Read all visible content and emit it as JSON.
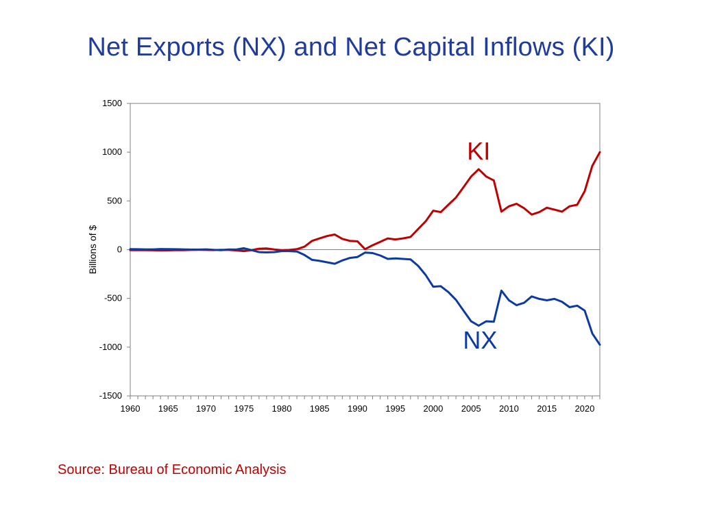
{
  "title": "Net Exports (NX) and Net Capital Inflows (KI)",
  "source": "Source:  Bureau of Economic Analysis",
  "chart_data": {
    "type": "line",
    "xlabel": "",
    "ylabel": "Billions of $",
    "xlim": [
      1960,
      2022
    ],
    "ylim": [
      -1500,
      1500
    ],
    "xticks": [
      1960,
      1965,
      1970,
      1975,
      1980,
      1985,
      1990,
      1995,
      2000,
      2005,
      2010,
      2015,
      2020
    ],
    "yticks": [
      1500,
      1000,
      500,
      0,
      -500,
      -1000,
      -1500
    ],
    "grid": false,
    "zero_line": true,
    "x": [
      1960,
      1961,
      1962,
      1963,
      1964,
      1965,
      1966,
      1967,
      1968,
      1969,
      1970,
      1971,
      1972,
      1973,
      1974,
      1975,
      1976,
      1977,
      1978,
      1979,
      1980,
      1981,
      1982,
      1983,
      1984,
      1985,
      1986,
      1987,
      1988,
      1989,
      1990,
      1991,
      1992,
      1993,
      1994,
      1995,
      1996,
      1997,
      1998,
      1999,
      2000,
      2001,
      2002,
      2003,
      2004,
      2005,
      2006,
      2007,
      2008,
      2009,
      2010,
      2011,
      2012,
      2013,
      2014,
      2015,
      2016,
      2017,
      2018,
      2019,
      2020,
      2021,
      2022
    ],
    "series": [
      {
        "name": "KI",
        "color": "#c00000",
        "values": [
          -5,
          -5,
          -5,
          -6,
          -8,
          -7,
          -5,
          -5,
          -3,
          -2,
          -3,
          -4,
          -2,
          -3,
          -8,
          -15,
          -5,
          10,
          12,
          2,
          -5,
          -3,
          5,
          30,
          90,
          115,
          140,
          155,
          110,
          90,
          85,
          5,
          45,
          80,
          115,
          105,
          115,
          130,
          210,
          290,
          400,
          385,
          460,
          535,
          640,
          750,
          825,
          750,
          710,
          390,
          445,
          470,
          425,
          360,
          385,
          430,
          410,
          390,
          445,
          460,
          600,
          860,
          1000
        ]
      },
      {
        "name": "NX",
        "color": "#0b3aa4",
        "values": [
          5,
          4,
          3,
          3,
          6,
          5,
          4,
          3,
          1,
          1,
          3,
          -2,
          -5,
          2,
          1,
          15,
          -5,
          -25,
          -28,
          -25,
          -15,
          -15,
          -20,
          -55,
          -105,
          -115,
          -130,
          -145,
          -110,
          -85,
          -75,
          -30,
          -35,
          -60,
          -95,
          -90,
          -95,
          -100,
          -165,
          -260,
          -380,
          -375,
          -435,
          -515,
          -625,
          -735,
          -780,
          -735,
          -740,
          -420,
          -520,
          -570,
          -545,
          -480,
          -505,
          -520,
          -505,
          -535,
          -590,
          -575,
          -625,
          -860,
          -975
        ]
      }
    ]
  }
}
